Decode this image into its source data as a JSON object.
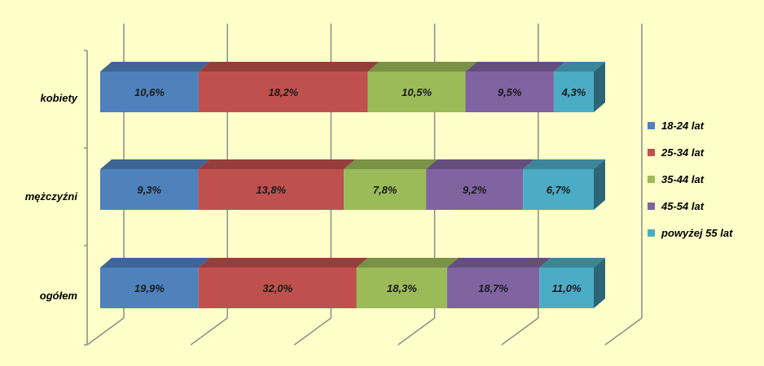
{
  "chart_data": {
    "type": "bar",
    "orientation": "horizontal",
    "stacked": true,
    "three_d": true,
    "categories": [
      "kobiety",
      "mężczyźni",
      "ogółem"
    ],
    "series": [
      {
        "name": "18-24 lat",
        "values": [
          10.6,
          9.3,
          19.9
        ],
        "labels": [
          "10,6%",
          "9,3%",
          "19,9%"
        ],
        "color": "#4F81BD"
      },
      {
        "name": "25-34 lat",
        "values": [
          18.2,
          13.8,
          32.0
        ],
        "labels": [
          "18,2%",
          "13,8%",
          "32,0%"
        ],
        "color": "#C0504D"
      },
      {
        "name": "35-44 lat",
        "values": [
          10.5,
          7.8,
          18.3
        ],
        "labels": [
          "10,5%",
          "7,8%",
          "18,3%"
        ],
        "color": "#9BBB59"
      },
      {
        "name": "45-54 lat",
        "values": [
          9.5,
          9.2,
          18.7
        ],
        "labels": [
          "9,5%",
          "9,2%",
          "18,7%"
        ],
        "color": "#8064A2"
      },
      {
        "name": "powyżej 55 lat",
        "values": [
          4.3,
          6.7,
          11.0
        ],
        "labels": [
          "4,3%",
          "6,7%",
          "11,0%"
        ],
        "color": "#4BACC6"
      }
    ],
    "xlim": [
      0,
      100
    ],
    "gridlines": "vertical",
    "legend_position": "right",
    "colors": {
      "background": "#FFFFC9",
      "grid": "#8C8C8C"
    }
  }
}
